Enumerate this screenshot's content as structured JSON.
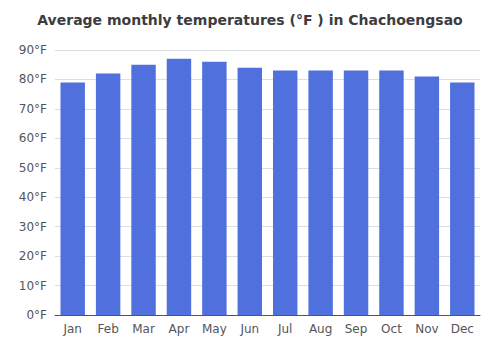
{
  "chart_data": {
    "type": "bar",
    "title": "Average monthly temperatures (°F ) in Chachoengsao",
    "categories": [
      "Jan",
      "Feb",
      "Mar",
      "Apr",
      "May",
      "Jun",
      "Jul",
      "Aug",
      "Sep",
      "Oct",
      "Nov",
      "Dec"
    ],
    "values": [
      79,
      82,
      85,
      87,
      86,
      84,
      83,
      83,
      83,
      83,
      81,
      79
    ],
    "ylim": [
      0,
      90
    ],
    "yticks": [
      {
        "value": 0,
        "label": "0°F"
      },
      {
        "value": 10,
        "label": "10°F"
      },
      {
        "value": 20,
        "label": "20°F"
      },
      {
        "value": 30,
        "label": "30°F"
      },
      {
        "value": 40,
        "label": "40°F"
      },
      {
        "value": 50,
        "label": "50°F"
      },
      {
        "value": 60,
        "label": "60°F"
      },
      {
        "value": 70,
        "label": "70°F"
      },
      {
        "value": 80,
        "label": "80°F"
      },
      {
        "value": 90,
        "label": "90°F"
      }
    ],
    "grid": true
  }
}
